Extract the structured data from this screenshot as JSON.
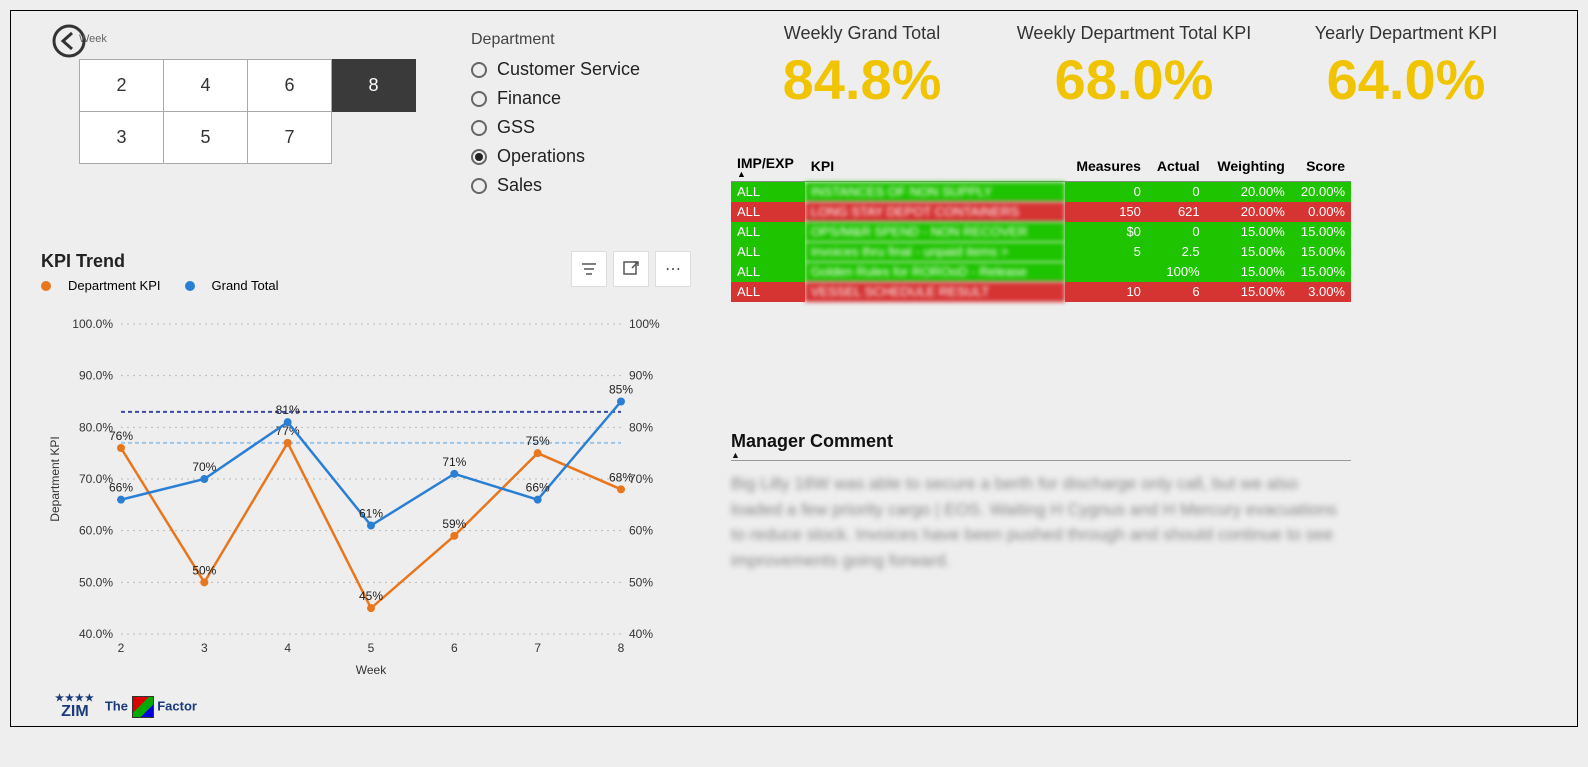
{
  "back_label": "Week",
  "week_slicer": {
    "options": [
      "2",
      "4",
      "6",
      "8",
      "3",
      "5",
      "7"
    ],
    "selected": "8"
  },
  "department_slicer": {
    "title": "Department",
    "options": [
      "Customer Service",
      "Finance",
      "GSS",
      "Operations",
      "Sales"
    ],
    "selected": "Operations"
  },
  "kpis": {
    "weekly_grand_total": {
      "label": "Weekly Grand Total",
      "value": "84.8%"
    },
    "weekly_dept_total": {
      "label": "Weekly Department Total KPI",
      "value": "68.0%"
    },
    "yearly_dept": {
      "label": "Yearly Department KPI",
      "value": "64.0%"
    }
  },
  "kpi_colors": {
    "value_color": "#f0c400"
  },
  "table": {
    "columns": [
      "IMP/EXP",
      "KPI",
      "Measures",
      "Actual",
      "Weighting",
      "Score"
    ],
    "rows": [
      {
        "status": "green",
        "impexp": "ALL",
        "kpi": "INSTANCES OF NON SUPPLY",
        "measures": "0",
        "actual": "0",
        "weighting": "20.00%",
        "score": "20.00%"
      },
      {
        "status": "red",
        "impexp": "ALL",
        "kpi": "LONG STAY DEPOT CONTAINERS",
        "measures": "150",
        "actual": "621",
        "weighting": "20.00%",
        "score": "0.00%"
      },
      {
        "status": "green",
        "impexp": "ALL",
        "kpi": "OPS/M&R SPEND - NON RECOVER",
        "measures": "$0",
        "actual": "0",
        "weighting": "15.00%",
        "score": "15.00%"
      },
      {
        "status": "green",
        "impexp": "ALL",
        "kpi": "Invoices thru final - unpaid items >",
        "measures": "5",
        "actual": "2.5",
        "weighting": "15.00%",
        "score": "15.00%"
      },
      {
        "status": "green",
        "impexp": "ALL",
        "kpi": "Golden Rules for ROROoD - Release",
        "measures": "",
        "actual": "100%",
        "weighting": "15.00%",
        "score": "15.00%"
      },
      {
        "status": "red",
        "impexp": "ALL",
        "kpi": "VESSEL SCHEDULE RESULT",
        "measures": "10",
        "actual": "6",
        "weighting": "15.00%",
        "score": "3.00%"
      }
    ],
    "row_colors": {
      "green": "#1ec400",
      "red": "#d63333"
    }
  },
  "manager_comment": {
    "title": "Manager Comment",
    "body": "Big Lilly 18W was able to secure a berth for discharge only call, but we also loaded a few priority cargo | EOS. Waiting H Cygnus and H Mercury evacuations to reduce stock. Invoices have been pushed through and should continue to see improvements going forward."
  },
  "chart": {
    "title": "KPI Trend",
    "type": "line",
    "x_label": "Week",
    "y_label_left": "Department KPI",
    "categories": [
      "2",
      "3",
      "4",
      "5",
      "6",
      "7",
      "8"
    ],
    "series": [
      {
        "name": "Department KPI",
        "color": "#e8761d",
        "values": [
          76,
          50,
          77,
          45,
          59,
          75,
          68
        ],
        "labels": [
          "76%",
          "50%",
          "77%",
          "45%",
          "59%",
          "75%",
          "68%"
        ]
      },
      {
        "name": "Grand Total",
        "color": "#2a7fd4",
        "values": [
          66,
          70,
          81,
          61,
          71,
          66,
          85
        ],
        "labels": [
          "66%",
          "70%",
          "81%",
          "61%",
          "71%",
          "66%",
          "85%"
        ]
      }
    ],
    "ylim": [
      40,
      100
    ],
    "ytick_step": 10,
    "left_ticks": [
      "40.0%",
      "50.0%",
      "60.0%",
      "70.0%",
      "80.0%",
      "90.0%",
      "100.0%"
    ],
    "right_ticks": [
      "40%",
      "50%",
      "60%",
      "70%",
      "80%",
      "90%",
      "100%"
    ],
    "reference_lines": [
      {
        "value": 83,
        "color": "#3b4aa8",
        "dash": "4 3"
      },
      {
        "value": 77,
        "color": "#9cc6ea",
        "dash": "4 3"
      }
    ],
    "grid_color": "#bbbbbb",
    "background": "#eeeeee"
  },
  "logos": {
    "zim": "ZIM",
    "tagline": "The",
    "factor": "Factor"
  }
}
